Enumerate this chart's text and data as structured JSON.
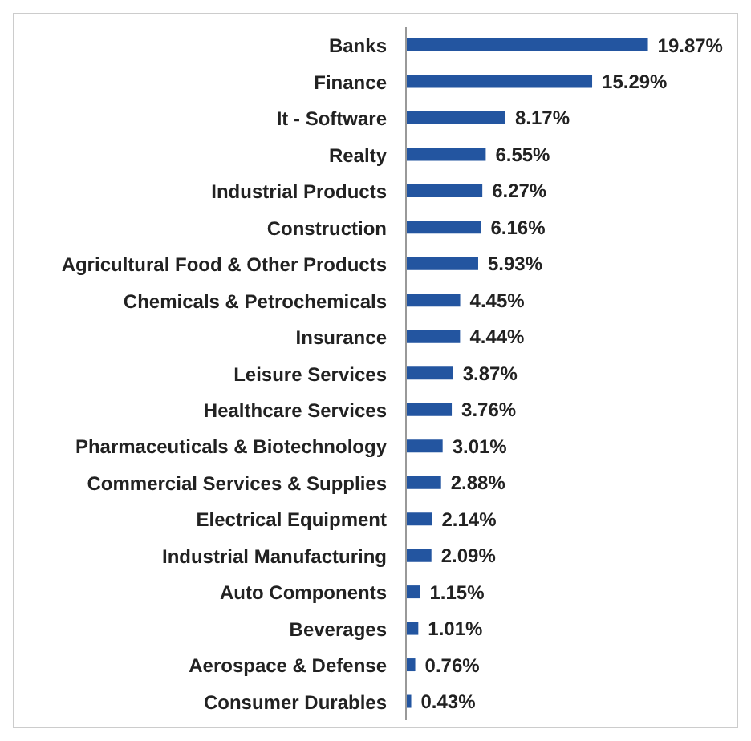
{
  "chart_data": {
    "type": "bar",
    "orientation": "horizontal",
    "categories": [
      "Banks",
      "Finance",
      "It - Software",
      "Realty",
      "Industrial Products",
      "Construction",
      "Agricultural Food & Other Products",
      "Chemicals & Petrochemicals",
      "Insurance",
      "Leisure Services",
      "Healthcare Services",
      "Pharmaceuticals & Biotechnology",
      "Commercial Services & Supplies",
      "Electrical Equipment",
      "Industrial Manufacturing",
      "Auto Components",
      "Beverages",
      "Aerospace & Defense",
      "Consumer Durables"
    ],
    "values": [
      19.87,
      15.29,
      8.17,
      6.55,
      6.27,
      6.16,
      5.93,
      4.45,
      4.44,
      3.87,
      3.76,
      3.01,
      2.88,
      2.14,
      2.09,
      1.15,
      1.01,
      0.76,
      0.43
    ],
    "value_labels": [
      "19.87%",
      "15.29%",
      "8.17%",
      "6.55%",
      "6.27%",
      "6.16%",
      "5.93%",
      "4.45%",
      "4.44%",
      "3.87%",
      "3.76%",
      "3.01%",
      "2.88%",
      "2.14%",
      "2.09%",
      "1.15%",
      "1.01%",
      "0.76%",
      "0.43%"
    ],
    "color": "#2355a0",
    "grid": false,
    "legend": false
  }
}
